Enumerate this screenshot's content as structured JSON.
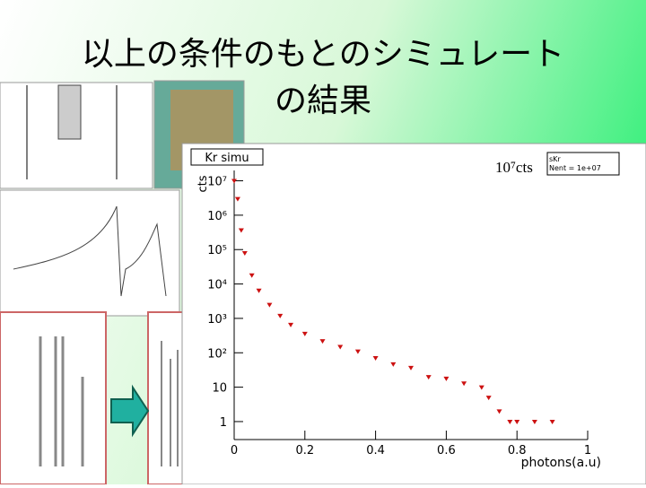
{
  "slide": {
    "title_line1": "以上の条件のもとのシミュレート",
    "title_line2": "の結果"
  },
  "chart_data": {
    "type": "scatter",
    "title": "Kr simu",
    "annotation": "10⁷cts",
    "stats_title": "sKr",
    "stats_text": "Nent = 1e+07",
    "x_label": "photons(a.u)",
    "y_label": "cts",
    "x": [
      0,
      0.01,
      0.02,
      0.03,
      0.05,
      0.07,
      0.1,
      0.13,
      0.16,
      0.2,
      0.25,
      0.3,
      0.35,
      0.4,
      0.45,
      0.5,
      0.55,
      0.6,
      0.65,
      0.7,
      0.72,
      0.75,
      0.78,
      0.8,
      0.85,
      0.9
    ],
    "values": [
      10000000,
      3000000,
      370000,
      80000,
      18000,
      6500,
      2500,
      1200,
      660,
      360,
      220,
      150,
      110,
      71,
      47,
      37,
      20,
      18,
      13,
      10,
      5,
      2,
      1,
      1,
      1,
      1
    ],
    "color": "#cc1111",
    "log_y": true,
    "xlim": [
      0,
      1
    ],
    "ylim": [
      0.3,
      20000000
    ],
    "xticks": [
      0,
      0.2,
      0.4,
      0.6,
      0.8,
      1
    ],
    "yticks": [
      1,
      10,
      {
        "value": 100,
        "label": "10²"
      },
      {
        "value": 1000,
        "label": "10³"
      },
      {
        "value": 10000,
        "label": "10⁴"
      },
      {
        "value": 100000,
        "label": "10⁵"
      },
      {
        "value": 1000000,
        "label": "10⁶"
      },
      {
        "value": 10000000,
        "label": "10⁷"
      }
    ]
  }
}
